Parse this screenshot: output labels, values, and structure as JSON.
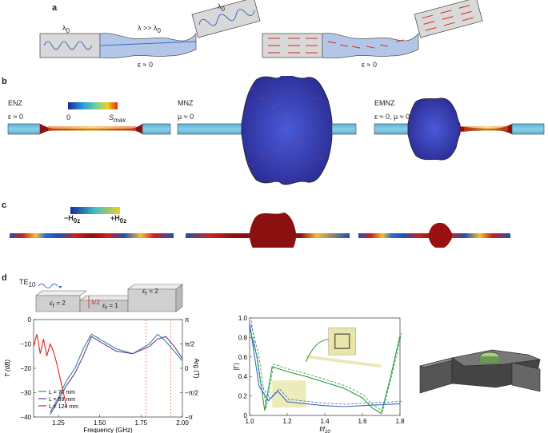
{
  "panels": {
    "a": {
      "letter": "a",
      "lambda0": "λ",
      "lambda0_sub": "0",
      "lambda_big": "λ >> λ",
      "lambda_big_sub": "0",
      "eps_zero": "ε ≈ 0"
    },
    "b": {
      "letter": "b",
      "enz": "ENZ",
      "enz_cond": "ε ≈ 0",
      "mnz": "MNZ",
      "mnz_cond": "μ ≈ 0",
      "emnz": "EMNZ",
      "emnz_cond": "ε ≈ 0, μ ≈ 0",
      "colorbar_min": "0",
      "colorbar_max": "S",
      "colorbar_max_sub": "max"
    },
    "c": {
      "letter": "c",
      "colorbar_min": "−H",
      "colorbar_max": "+H",
      "colorbar_sub": "0z"
    },
    "d": {
      "letter": "d",
      "te_label": "TE",
      "te_sub": "10",
      "eps_left": "ε",
      "eps_left_val": " = 2",
      "eps_mid": "ε",
      "eps_mid_val": " = 1",
      "eps_right": "ε",
      "eps_right_val": " = 2",
      "eps_sub": "r",
      "lambda_half": "λ/2"
    }
  },
  "colors": {
    "enz_blue": "#b4c6e8",
    "waveguide_gray": "#d9d9d9",
    "arrow_red": "#e0281e",
    "field_red": "#8b1010",
    "mnz_blue": "#3a3fa8",
    "green": "#2d9a3c",
    "purple": "#6a3aa0",
    "teal": "#3a8a8a",
    "inset_yellow": "#e9e6a8"
  },
  "chart_data": [
    {
      "type": "line",
      "title": "",
      "xlabel": "Frequency (GHz)",
      "ylabel": "T (dB)",
      "ylabel_right": "Arg (T)",
      "xlim": [
        1.1,
        2.0
      ],
      "ylim": [
        -40,
        0
      ],
      "x_ticks": [
        "1.25",
        "1.50",
        "1.75",
        "2.00"
      ],
      "y_ticks": [
        "0",
        "−10",
        "−20",
        "−30",
        "−40"
      ],
      "y_right_ticks": [
        "π",
        "π/2",
        "0",
        "−π/2",
        "−π"
      ],
      "legend_position": "bottom-left",
      "series": [
        {
          "name": "L = 74 mm",
          "color": "#3a8a8a",
          "x": [
            1.2,
            1.25,
            1.3,
            1.35,
            1.4,
            1.45,
            1.5,
            1.55,
            1.6,
            1.7,
            1.8,
            1.85,
            1.9,
            1.95,
            2.0
          ],
          "y": [
            -38,
            -32,
            -25,
            -20,
            -12,
            -6,
            -8,
            -10,
            -12,
            -14,
            -10,
            -6,
            -9,
            -13,
            -17
          ]
        },
        {
          "name": "L = 99 mm",
          "color": "#6a3aa0",
          "x": [
            1.2,
            1.25,
            1.3,
            1.35,
            1.4,
            1.45,
            1.5,
            1.55,
            1.6,
            1.7,
            1.8,
            1.85,
            1.9,
            1.95,
            2.0
          ],
          "y": [
            -39,
            -33,
            -27,
            -22,
            -15,
            -7,
            -9,
            -11,
            -13,
            -14,
            -11,
            -8,
            -7,
            -11,
            -16
          ]
        },
        {
          "name": "L = 124 mm",
          "color": "#e02020",
          "x": [
            1.1,
            1.12,
            1.14,
            1.16,
            1.18,
            1.2,
            1.22,
            1.24,
            1.26,
            1.28,
            1.3
          ],
          "y": [
            -11,
            -6,
            -14,
            -8,
            -15,
            -10,
            -13,
            -18,
            -24,
            -30,
            -36
          ]
        }
      ]
    },
    {
      "type": "line",
      "title": "",
      "xlabel": "f/f",
      "xlabel_sub": "10",
      "ylabel": "|Γ|",
      "xlim": [
        1.0,
        1.8
      ],
      "ylim": [
        0,
        1
      ],
      "x_ticks": [
        "1.0",
        "1.2",
        "1.4",
        "1.6",
        "1.8"
      ],
      "y_ticks": [
        "0",
        "0.2",
        "0.4",
        "0.6",
        "0.8",
        "1.0"
      ],
      "series": [
        {
          "name": "",
          "color": "#2d9a3c",
          "x": [
            1.0,
            1.04,
            1.08,
            1.12,
            1.2,
            1.3,
            1.4,
            1.5,
            1.6,
            1.65,
            1.7,
            1.75,
            1.8
          ],
          "y": [
            0.9,
            0.6,
            0.05,
            0.5,
            0.45,
            0.4,
            0.34,
            0.28,
            0.18,
            0.08,
            0.02,
            0.4,
            0.82
          ]
        },
        {
          "name": "",
          "color": "#3a6ac8",
          "x": [
            1.0,
            1.05,
            1.1,
            1.15,
            1.2,
            1.3,
            1.4,
            1.5,
            1.6,
            1.7,
            1.8
          ],
          "y": [
            0.95,
            0.3,
            0.15,
            0.25,
            0.14,
            0.12,
            0.1,
            0.09,
            0.1,
            0.11,
            0.12
          ]
        }
      ]
    }
  ]
}
